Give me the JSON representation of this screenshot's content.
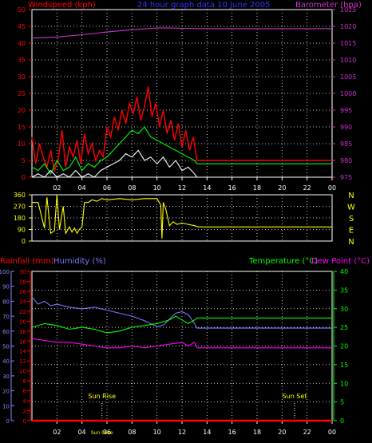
{
  "header": {
    "left_label": "Windspeed (kph)",
    "title": "24 hour graph data  10 June 2005",
    "right_label": "Barometer (hpa)"
  },
  "bottom_header": {
    "rain_label": "Rainfall (mm)",
    "humidity_label": "Humidity (%)",
    "temp_label": "Temperature (°C)",
    "dew_label": "Dew Point (°C)"
  },
  "wind_direction_letters": [
    "N",
    "W",
    "S",
    "E",
    "N"
  ],
  "sun": {
    "rise_label": "Sun Rise",
    "set_label": "Sun Set",
    "rise_time": 5.6,
    "set_time": 21.0,
    "bottom_rise_text": "Sun 06se"
  },
  "colors": {
    "windspeed": "#ff0000",
    "barometer": "#cc33cc",
    "gust": "#ff0000",
    "average": "#00ff00",
    "min_wind": "#ffffff",
    "direction": "#ffff00",
    "rain": "#ff0000",
    "humidity": "#7777ff",
    "temperature": "#00ff00",
    "dew": "#ff00ff",
    "axis_left_bottom": "#8888ff",
    "axis_temp": "#00ff00"
  },
  "chart_data": [
    {
      "type": "line",
      "name": "wind-barometer",
      "x_ticks": [
        "02",
        "04",
        "06",
        "08",
        "10",
        "12",
        "14",
        "16",
        "18",
        "20",
        "22",
        "00"
      ],
      "ylim_left": [
        0,
        50
      ],
      "yticks_left": [
        0,
        5,
        10,
        15,
        20,
        25,
        30,
        35,
        40,
        45,
        50
      ],
      "ylim_right": [
        975,
        1025
      ],
      "yticks_right": [
        975,
        980,
        985,
        990,
        995,
        1000,
        1005,
        1010,
        1015,
        1020,
        1025
      ],
      "series": [
        {
          "key": "barometer",
          "axis": "right",
          "x": [
            0,
            2,
            4,
            6,
            8,
            10,
            11,
            12,
            14,
            16,
            18,
            20,
            22,
            24
          ],
          "y": [
            1016.5,
            1016.8,
            1017.5,
            1018.3,
            1019,
            1019.5,
            1019.5,
            1019.4,
            1019.3,
            1019.3,
            1019.3,
            1019.3,
            1019.3,
            1019.3
          ]
        },
        {
          "key": "gust",
          "axis": "left",
          "x": [
            0,
            0.3,
            0.6,
            0.9,
            1.2,
            1.5,
            1.8,
            2.1,
            2.4,
            2.7,
            3.0,
            3.3,
            3.6,
            3.9,
            4.2,
            4.5,
            4.8,
            5.1,
            5.4,
            5.7,
            6.0,
            6.3,
            6.6,
            6.9,
            7.2,
            7.5,
            7.8,
            8.1,
            8.4,
            8.7,
            9.0,
            9.3,
            9.6,
            9.9,
            10.2,
            10.5,
            10.8,
            11.1,
            11.4,
            11.7,
            12.0,
            12.3,
            12.6,
            12.9,
            13.2,
            24
          ],
          "y": [
            12,
            4,
            10,
            6,
            3,
            8,
            2,
            5,
            14,
            3,
            9,
            6,
            11,
            4,
            13,
            7,
            10,
            5,
            8,
            6,
            15,
            12,
            18,
            14,
            20,
            16,
            22,
            19,
            24,
            17,
            21,
            27,
            18,
            22,
            15,
            20,
            13,
            17,
            11,
            16,
            9,
            14,
            8,
            12,
            5,
            5
          ]
        },
        {
          "key": "average",
          "axis": "left",
          "x": [
            0,
            0.5,
            1,
            1.5,
            2,
            2.5,
            3,
            3.5,
            4,
            4.5,
            5,
            5.5,
            6,
            6.5,
            7,
            7.5,
            8,
            8.5,
            9,
            9.5,
            10,
            10.5,
            11,
            11.5,
            12,
            12.5,
            13,
            13.2,
            24
          ],
          "y": [
            3,
            2,
            4,
            1,
            5,
            2,
            3,
            6,
            2,
            4,
            3,
            5,
            6,
            8,
            10,
            12,
            14,
            13,
            15,
            12,
            11,
            10,
            9,
            8,
            7,
            6,
            5,
            4,
            4
          ]
        },
        {
          "key": "min_wind",
          "axis": "left",
          "x": [
            0,
            0.5,
            1,
            1.5,
            2,
            2.5,
            3,
            3.5,
            4,
            4.5,
            5,
            5.5,
            6,
            6.5,
            7,
            7.5,
            8,
            8.5,
            9,
            9.5,
            10,
            10.5,
            11,
            11.5,
            12,
            12.5,
            13,
            13.2,
            24
          ],
          "y": [
            0,
            1,
            0,
            2,
            0,
            1,
            0,
            2,
            0,
            1,
            0,
            2,
            3,
            4,
            5,
            7,
            6,
            8,
            5,
            6,
            4,
            6,
            3,
            5,
            2,
            3,
            1,
            0,
            0
          ]
        }
      ]
    },
    {
      "type": "line",
      "name": "wind-direction",
      "ylim": [
        0,
        360
      ],
      "yticks": [
        0,
        90,
        180,
        270,
        360
      ],
      "series": [
        {
          "key": "direction",
          "x": [
            0,
            0.5,
            1,
            1.2,
            1.5,
            1.8,
            2.0,
            2.2,
            2.5,
            2.7,
            3.0,
            3.2,
            3.4,
            3.6,
            3.8,
            4.0,
            4.2,
            4.5,
            4.8,
            5.2,
            5.6,
            6.0,
            7,
            8,
            9,
            10,
            10.3,
            10.4,
            10.5,
            10.7,
            11,
            11.3,
            11.6,
            12,
            12.5,
            13,
            13.3,
            24
          ],
          "y": [
            300,
            300,
            100,
            340,
            60,
            80,
            360,
            90,
            270,
            60,
            110,
            70,
            100,
            60,
            90,
            110,
            300,
            300,
            320,
            310,
            330,
            320,
            330,
            320,
            330,
            330,
            280,
            20,
            300,
            250,
            120,
            150,
            130,
            140,
            130,
            120,
            110,
            110
          ]
        }
      ]
    },
    {
      "type": "line",
      "name": "temp-humidity-rain",
      "ylim_humidity": [
        0,
        100
      ],
      "yticks_humidity": [
        0,
        10,
        20,
        30,
        40,
        50,
        60,
        70,
        80,
        90,
        100
      ],
      "ylim_rain": [
        0,
        30
      ],
      "yticks_rain": [
        0,
        2,
        4,
        6,
        8,
        10,
        12,
        14,
        16,
        18,
        20,
        22,
        24,
        26,
        28,
        30
      ],
      "ylim_temp": [
        0,
        40
      ],
      "yticks_temp": [
        0,
        5,
        10,
        15,
        20,
        25,
        30,
        35,
        40
      ],
      "series": [
        {
          "key": "humidity",
          "axis": "humidity",
          "x": [
            0,
            0.5,
            1,
            1.5,
            2,
            3,
            4,
            5,
            6,
            7,
            8,
            9,
            10,
            10.5,
            11,
            11.5,
            12,
            12.5,
            13,
            13.2,
            24
          ],
          "y": [
            83,
            78,
            80,
            77,
            78,
            76,
            75,
            76,
            74,
            72,
            70,
            67,
            63,
            64,
            68,
            72,
            73,
            71,
            65,
            62,
            62
          ]
        },
        {
          "key": "temperature",
          "axis": "temp",
          "x": [
            0,
            1,
            2,
            3,
            4,
            5,
            6,
            7,
            8,
            9,
            10,
            11,
            11.5,
            12,
            12.5,
            13,
            13.2,
            24
          ],
          "y": [
            25,
            26,
            25.5,
            24.5,
            25,
            24.5,
            23.5,
            24,
            25,
            25.5,
            26,
            27,
            28,
            27,
            26,
            27,
            27.5,
            27.5
          ]
        },
        {
          "key": "dew",
          "axis": "temp",
          "x": [
            0,
            1,
            2,
            3,
            4,
            5,
            6,
            7,
            8,
            9,
            10,
            11,
            12,
            12.5,
            13,
            13.2,
            24
          ],
          "y": [
            22,
            21.5,
            21,
            21,
            20.5,
            20,
            19.5,
            19.5,
            20,
            19.5,
            20,
            20.5,
            21,
            20,
            21,
            19.5,
            19.5
          ]
        },
        {
          "key": "rain",
          "axis": "rain",
          "x": [
            0,
            24
          ],
          "y": [
            0,
            0
          ]
        }
      ]
    }
  ]
}
